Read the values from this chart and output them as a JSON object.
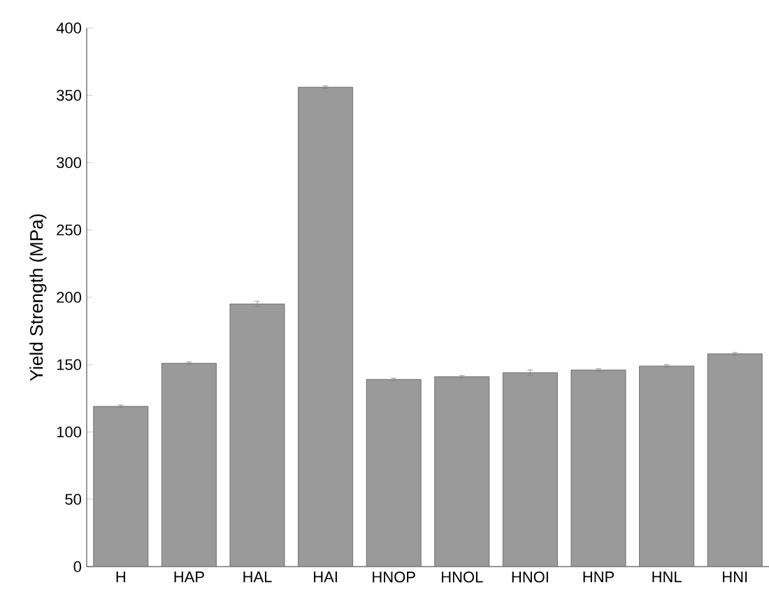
{
  "chart_data": {
    "type": "bar",
    "ylabel": "Yield Strength (MPa)",
    "categories": [
      "H",
      "HAP",
      "HAL",
      "HAI",
      "HNOP",
      "HNOL",
      "HNOI",
      "HNP",
      "HNL",
      "HNI"
    ],
    "values": [
      119,
      151,
      195,
      356,
      139,
      141,
      144,
      146,
      149,
      158
    ],
    "errors": [
      1,
      1,
      2,
      1,
      1,
      1,
      2,
      1,
      1,
      1
    ],
    "color": "#9a9a9a",
    "ylim": [
      0,
      400
    ],
    "yticks": [
      0,
      50,
      100,
      150,
      200,
      250,
      300,
      350,
      400
    ],
    "grid": false
  }
}
